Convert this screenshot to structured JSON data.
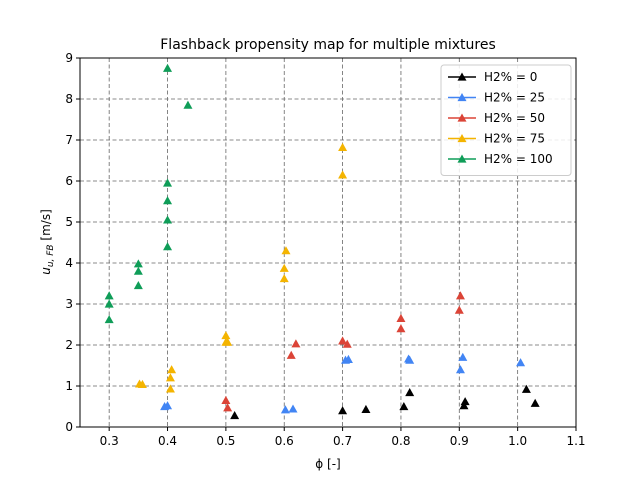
{
  "chart_data": {
    "type": "scatter",
    "title": "Flashback propensity map for multiple mixtures",
    "xlabel": "ϕ [-]",
    "ylabel_main": "u",
    "ylabel_sub": "u, FB",
    "ylabel_unit": " [m/s]",
    "xlim": [
      0.25,
      1.1
    ],
    "ylim": [
      0,
      9
    ],
    "xticks": [
      0.3,
      0.4,
      0.5,
      0.6,
      0.7,
      0.8,
      0.9,
      1.0,
      1.1
    ],
    "xtick_labels": [
      "0.3",
      "0.4",
      "0.5",
      "0.6",
      "0.7",
      "0.8",
      "0.9",
      "1.0",
      "1.1"
    ],
    "yticks": [
      0,
      1,
      2,
      3,
      4,
      5,
      6,
      7,
      8,
      9
    ],
    "ytick_labels": [
      "0",
      "1",
      "2",
      "3",
      "4",
      "5",
      "6",
      "7",
      "8",
      "9"
    ],
    "grid": true,
    "legend_position": "top-right",
    "marker": "triangle",
    "series": [
      {
        "name": "H2% = 0",
        "color": "#000000",
        "x": [
          0.515,
          0.7,
          0.74,
          0.805,
          0.815,
          0.908,
          0.91,
          1.015,
          1.03
        ],
        "y": [
          0.28,
          0.4,
          0.43,
          0.5,
          0.84,
          0.52,
          0.62,
          0.92,
          0.58
        ]
      },
      {
        "name": "H2% = 25",
        "color": "#4285f4",
        "x": [
          0.395,
          0.4,
          0.602,
          0.615,
          0.705,
          0.71,
          0.813,
          0.815,
          0.902,
          0.906,
          1.005
        ],
        "y": [
          0.5,
          0.52,
          0.42,
          0.44,
          1.63,
          1.65,
          1.66,
          1.63,
          1.4,
          1.7,
          1.57
        ]
      },
      {
        "name": "H2% = 50",
        "color": "#db4437",
        "x": [
          0.5,
          0.503,
          0.612,
          0.62,
          0.7,
          0.708,
          0.8,
          0.8,
          0.9,
          0.902
        ],
        "y": [
          0.65,
          0.47,
          1.75,
          2.03,
          2.1,
          2.02,
          2.4,
          2.65,
          2.85,
          3.2
        ]
      },
      {
        "name": "H2% = 75",
        "color": "#f4b400",
        "x": [
          0.352,
          0.357,
          0.405,
          0.405,
          0.407,
          0.5,
          0.5,
          0.503,
          0.6,
          0.6,
          0.603,
          0.7,
          0.7
        ],
        "y": [
          1.05,
          1.04,
          0.93,
          1.2,
          1.4,
          2.23,
          2.07,
          2.07,
          3.62,
          3.87,
          4.3,
          6.15,
          6.82
        ]
      },
      {
        "name": "H2% = 100",
        "color": "#0f9d58",
        "x": [
          0.3,
          0.3,
          0.3,
          0.35,
          0.35,
          0.35,
          0.4,
          0.4,
          0.4,
          0.4,
          0.4,
          0.435
        ],
        "y": [
          2.62,
          3.0,
          3.2,
          3.45,
          3.8,
          3.98,
          4.4,
          5.05,
          5.52,
          5.95,
          8.75,
          7.85
        ]
      }
    ]
  }
}
